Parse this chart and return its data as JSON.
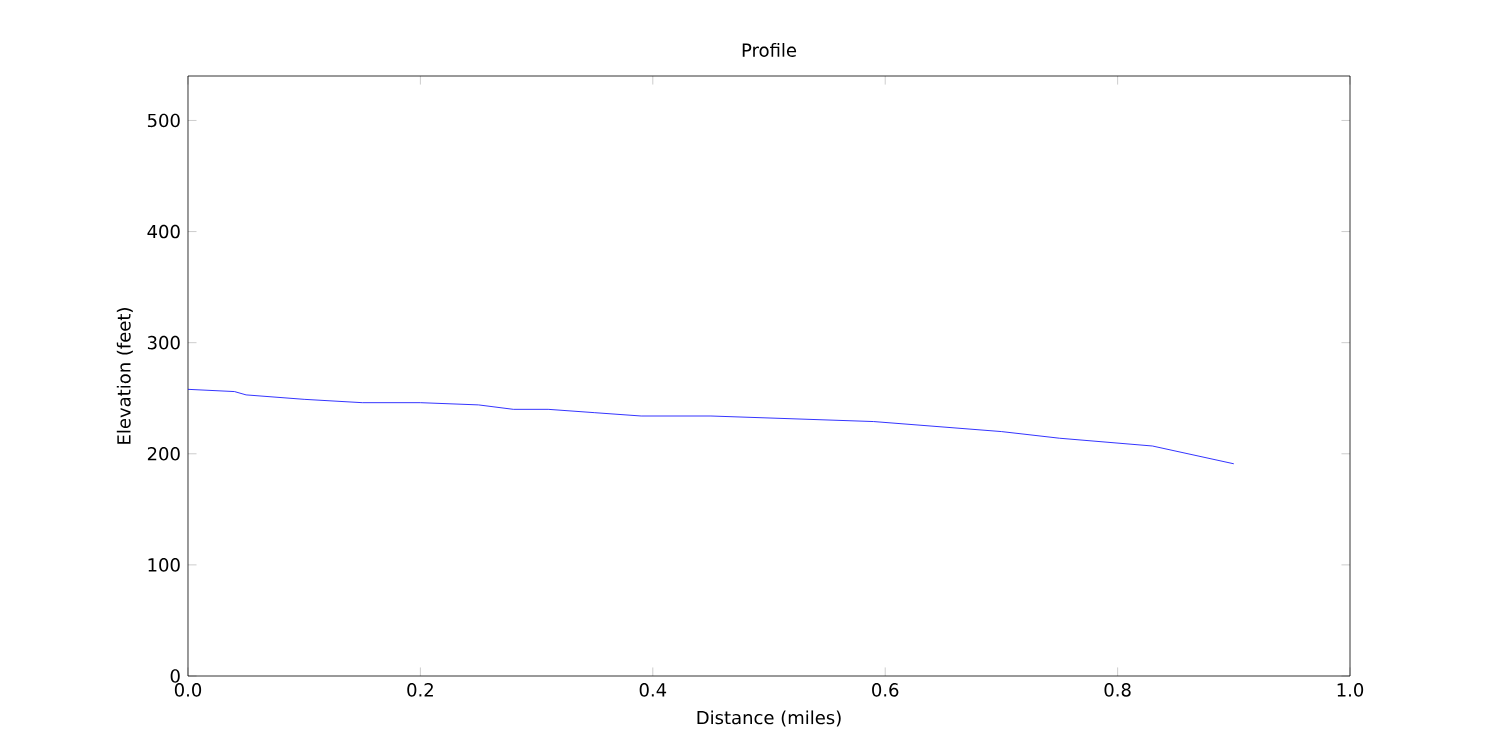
{
  "chart_data": {
    "type": "line",
    "title": "Profile",
    "xlabel": "Distance (miles)",
    "ylabel": "Elevation (feet)",
    "x": [
      0,
      0.04,
      0.05,
      0.1,
      0.15,
      0.2,
      0.25,
      0.28,
      0.31,
      0.35,
      0.39,
      0.45,
      0.59,
      0.7,
      0.75,
      0.83,
      0.9
    ],
    "series": [
      {
        "color": "#0000ff",
        "values": [
          258,
          256,
          253,
          249,
          246,
          246,
          244,
          240,
          240,
          237,
          234,
          234,
          229,
          220,
          214,
          207,
          191
        ]
      }
    ],
    "xlim": [
      0,
      1
    ],
    "ylim": [
      0,
      540
    ],
    "xticks": [
      {
        "value": 0,
        "label": "0.0"
      },
      {
        "value": 0.2,
        "label": "0.2"
      },
      {
        "value": 0.4,
        "label": "0.4"
      },
      {
        "value": 0.6,
        "label": "0.6"
      },
      {
        "value": 0.8,
        "label": "0.8"
      },
      {
        "value": 1,
        "label": "1.0"
      }
    ],
    "yticks": [
      {
        "value": 0,
        "label": "0"
      },
      {
        "value": 100,
        "label": "100"
      },
      {
        "value": 200,
        "label": "200"
      },
      {
        "value": 300,
        "label": "300"
      },
      {
        "value": 400,
        "label": "400"
      },
      {
        "value": 500,
        "label": "500"
      }
    ],
    "grid": false,
    "marker": "none",
    "line_style": "solid"
  }
}
